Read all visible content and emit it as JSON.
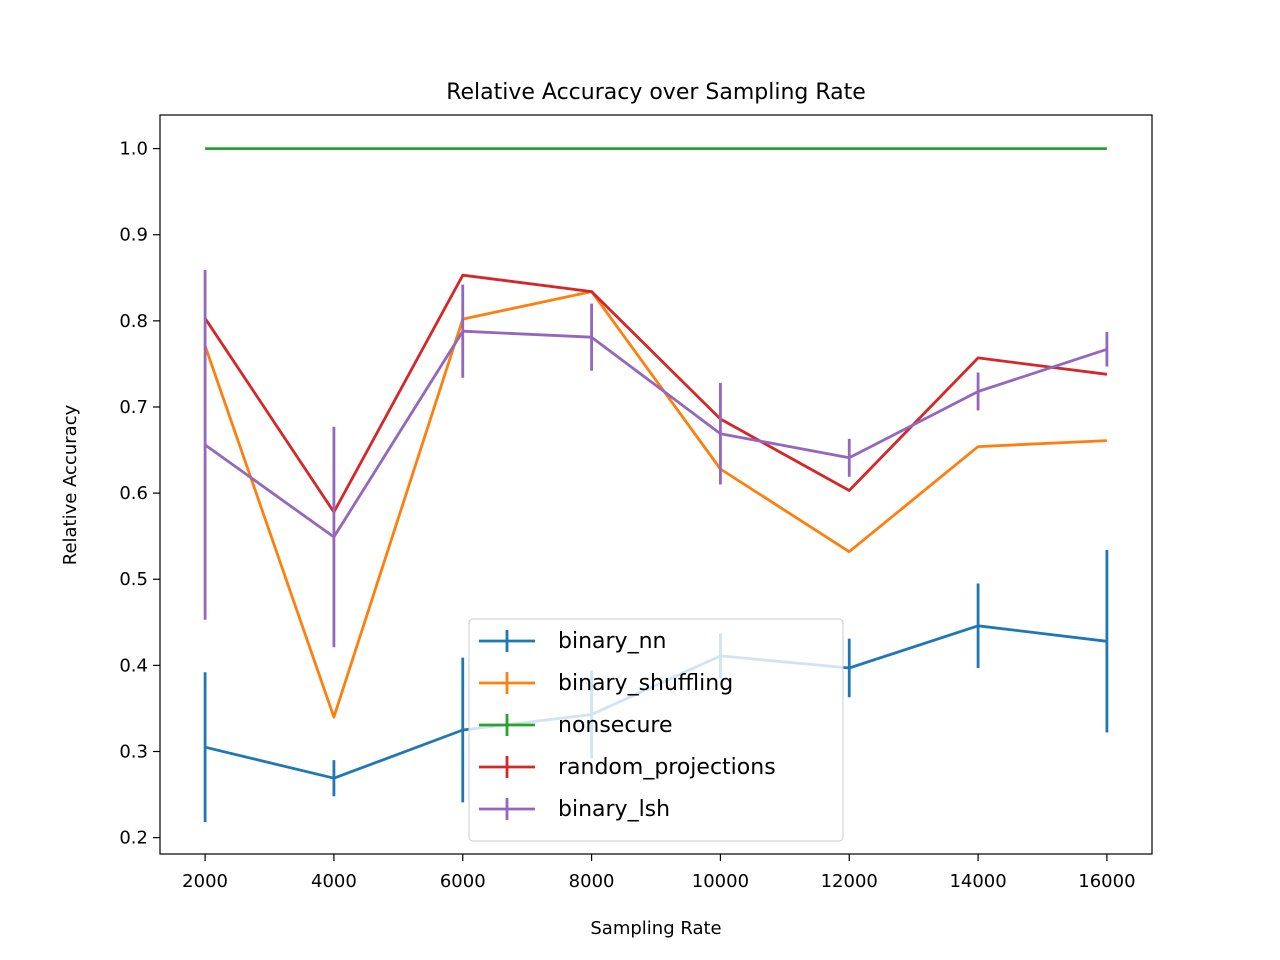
{
  "chart_data": {
    "type": "line",
    "title": "Relative Accuracy over Sampling Rate",
    "xlabel": "Sampling Rate",
    "ylabel": "Relative Accuracy",
    "x": [
      2000,
      4000,
      6000,
      8000,
      10000,
      12000,
      14000,
      16000
    ],
    "xlim": [
      1300,
      16700
    ],
    "ylim": [
      0.181,
      1.039
    ],
    "xticks": [
      2000,
      4000,
      6000,
      8000,
      10000,
      12000,
      14000,
      16000
    ],
    "yticks": [
      0.2,
      0.3,
      0.4,
      0.5,
      0.6,
      0.7,
      0.8,
      0.9,
      1.0
    ],
    "grid": false,
    "legend_position": "lower-center",
    "series": [
      {
        "name": "binary_nn",
        "color": "#1f77b4",
        "values": [
          0.305,
          0.269,
          0.325,
          0.343,
          0.411,
          0.397,
          0.446,
          0.428
        ],
        "errors": [
          0.087,
          0.021,
          0.084,
          0.051,
          0.026,
          0.034,
          0.049,
          0.106
        ]
      },
      {
        "name": "binary_shuffling",
        "color": "#ff7f0e",
        "values": [
          0.771,
          0.34,
          0.802,
          0.834,
          0.628,
          0.532,
          0.654,
          0.661
        ],
        "errors": [
          0,
          0,
          0,
          0,
          0,
          0,
          0,
          0
        ]
      },
      {
        "name": "nonsecure",
        "color": "#2ca02c",
        "values": [
          1.0,
          1.0,
          1.0,
          1.0,
          1.0,
          1.0,
          1.0,
          1.0
        ],
        "errors": [
          0,
          0,
          0,
          0,
          0,
          0,
          0,
          0
        ]
      },
      {
        "name": "random_projections",
        "color": "#d62728",
        "values": [
          0.803,
          0.578,
          0.853,
          0.834,
          0.686,
          0.603,
          0.757,
          0.738
        ],
        "errors": [
          0,
          0,
          0,
          0,
          0,
          0,
          0,
          0
        ]
      },
      {
        "name": "binary_lsh",
        "color": "#9467bd",
        "values": [
          0.656,
          0.549,
          0.788,
          0.781,
          0.669,
          0.641,
          0.718,
          0.767
        ],
        "errors": [
          0.203,
          0.128,
          0.054,
          0.039,
          0.059,
          0.022,
          0.022,
          0.02
        ]
      }
    ]
  }
}
